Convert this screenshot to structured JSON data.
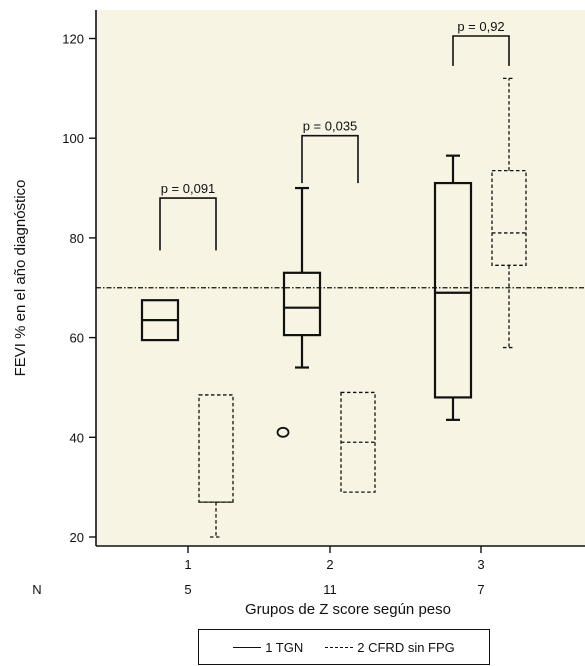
{
  "chart_data": {
    "type": "box",
    "xlabel": "Grupos de Z score según peso",
    "ylabel": "FEVI % en el año diagnóstico",
    "categories": [
      "1",
      "2",
      "3"
    ],
    "n_label": "N",
    "n_values": [
      "5",
      "11",
      "7"
    ],
    "ylim": [
      18,
      126
    ],
    "yticks": [
      20,
      40,
      60,
      80,
      100,
      120
    ],
    "reference_line": {
      "y": 70,
      "style": "dash-dot"
    },
    "series": [
      {
        "name": "1 TGN",
        "line_style": "solid",
        "boxes": [
          {
            "category": "1",
            "min": 59.5,
            "q1": 59.5,
            "median": 63.5,
            "q3": 67.5,
            "max": 67.5,
            "outliers": []
          },
          {
            "category": "2",
            "min": 54,
            "q1": 60.5,
            "median": 66,
            "q3": 73,
            "max": 90,
            "outliers": [
              41
            ]
          },
          {
            "category": "3",
            "min": 43.5,
            "q1": 48,
            "median": 69,
            "q3": 91,
            "max": 96.5,
            "outliers": []
          }
        ]
      },
      {
        "name": "2 CFRD sin FPG",
        "line_style": "dashed",
        "boxes": [
          {
            "category": "1",
            "min": 20,
            "q1": 27,
            "median": 27,
            "q3": 48.5,
            "max": 48.5,
            "outliers": []
          },
          {
            "category": "2",
            "min": 29,
            "q1": 29,
            "median": 39,
            "q3": 49,
            "max": 49,
            "outliers": []
          },
          {
            "category": "3",
            "min": 58,
            "q1": 74.5,
            "median": 81,
            "q3": 93.5,
            "max": 112,
            "outliers": []
          }
        ]
      }
    ],
    "annotations": [
      {
        "category": "1",
        "text": "p = 0,091",
        "y_top": 88,
        "y_left_end": 77.5,
        "y_right_end": 77.5
      },
      {
        "category": "2",
        "text": "p = 0,035",
        "y_top": 100.5,
        "y_left_end": 91,
        "y_right_end": 91
      },
      {
        "category": "3",
        "text": "p = 0,92",
        "y_top": 120.5,
        "y_left_end": 114.5,
        "y_right_end": 114.5
      }
    ],
    "grid": false,
    "legend": "bottom-center",
    "colors": {
      "background": "#f7f4e3",
      "ink": "#111111"
    }
  }
}
